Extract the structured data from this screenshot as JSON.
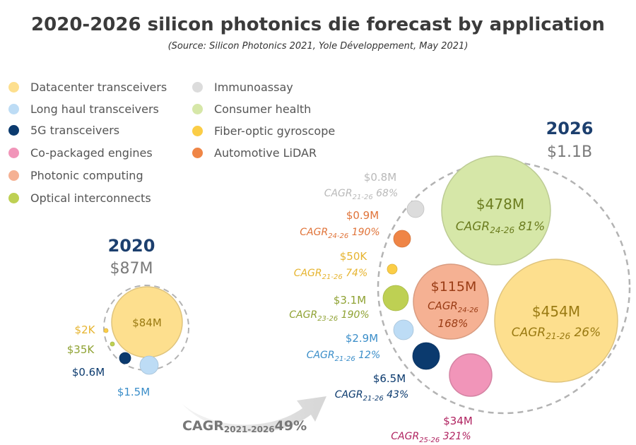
{
  "title": "2020-2026 silicon photonics die forecast by application",
  "subtitle": "(Source: Silicon Photonics 2021, Yole Développement, May 2021)",
  "colors": {
    "datacenter": "#fddf8e",
    "longhaul": "#bddcf5",
    "fiveg": "#0b3a6e",
    "copackaged": "#f195b9",
    "photonic": "#f5b193",
    "optical": "#bed053",
    "immuno": "#dcdcdc",
    "consumer": "#d6e7a8",
    "gyro": "#fbcd46",
    "lidar": "#ef8546"
  },
  "legend": {
    "col1": [
      {
        "key": "datacenter",
        "label": "Datacenter transceivers"
      },
      {
        "key": "longhaul",
        "label": "Long haul transceivers"
      },
      {
        "key": "fiveg",
        "label": "5G transceivers"
      },
      {
        "key": "copackaged",
        "label": "Co-packaged engines"
      },
      {
        "key": "photonic",
        "label": "Photonic computing"
      },
      {
        "key": "optical",
        "label": "Optical interconnects"
      }
    ],
    "col2": [
      {
        "key": "immuno",
        "label": "Immunoassay"
      },
      {
        "key": "consumer",
        "label": "Consumer health"
      },
      {
        "key": "gyro",
        "label": "Fiber-optic gyroscope"
      },
      {
        "key": "lidar",
        "label": "Automotive LiDAR"
      }
    ]
  },
  "overall_cagr": {
    "label": "CAGR",
    "sub": "2021-2026",
    "value": "49%"
  },
  "chart_data": {
    "type": "bubble",
    "years": [
      {
        "year": "2020",
        "total_label": "$87M",
        "total_value_musd": 87,
        "bubbles": [
          {
            "key": "datacenter",
            "value_label": "$84M",
            "value_musd": 84
          },
          {
            "key": "longhaul",
            "value_label": "$1.5M",
            "value_musd": 1.5
          },
          {
            "key": "fiveg",
            "value_label": "$0.6M",
            "value_musd": 0.6
          },
          {
            "key": "optical",
            "value_label": "$35K",
            "value_musd": 0.035
          },
          {
            "key": "gyro",
            "value_label": "$2K",
            "value_musd": 0.002
          }
        ]
      },
      {
        "year": "2026",
        "total_label": "$1.1B",
        "total_value_musd": 1100,
        "bubbles": [
          {
            "key": "consumer",
            "value_label": "$478M",
            "value_musd": 478,
            "cagr_sub": "24-26",
            "cagr": "81%"
          },
          {
            "key": "datacenter",
            "value_label": "$454M",
            "value_musd": 454,
            "cagr_sub": "21-26",
            "cagr": "26%"
          },
          {
            "key": "photonic",
            "value_label": "$115M",
            "value_musd": 115,
            "cagr_sub": "24-26",
            "cagr": "168%"
          },
          {
            "key": "copackaged",
            "value_label": "$34M",
            "value_musd": 34,
            "cagr_sub": "25-26",
            "cagr": "321%"
          },
          {
            "key": "fiveg",
            "value_label": "$6.5M",
            "value_musd": 6.5,
            "cagr_sub": "21-26",
            "cagr": "43%"
          },
          {
            "key": "optical",
            "value_label": "$3.1M",
            "value_musd": 3.1,
            "cagr_sub": "23-26",
            "cagr": "190%"
          },
          {
            "key": "longhaul",
            "value_label": "$2.9M",
            "value_musd": 2.9,
            "cagr_sub": "21-26",
            "cagr": "12%"
          },
          {
            "key": "lidar",
            "value_label": "$0.9M",
            "value_musd": 0.9,
            "cagr_sub": "24-26",
            "cagr": "190%"
          },
          {
            "key": "immuno",
            "value_label": "$0.8M",
            "value_musd": 0.8,
            "cagr_sub": "21-26",
            "cagr": "68%"
          },
          {
            "key": "gyro",
            "value_label": "$50K",
            "value_musd": 0.05,
            "cagr_sub": "21-26",
            "cagr": "74%"
          }
        ]
      }
    ]
  }
}
